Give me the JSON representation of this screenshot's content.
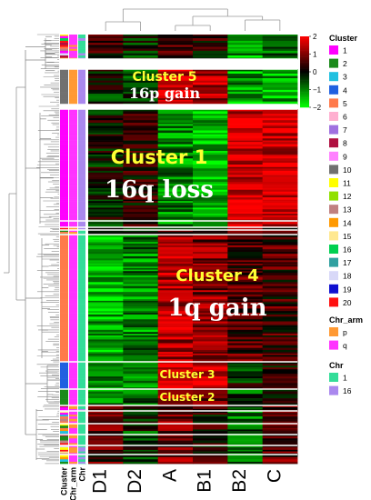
{
  "chart_data": {
    "type": "heatmap",
    "columns": [
      "D1",
      "D2",
      "A",
      "B1",
      "B2",
      "C"
    ],
    "annotation_columns": [
      "Cluster",
      "Chr_arm",
      "Chr"
    ],
    "color_scale": {
      "min": -2,
      "max": 2,
      "ticks": [
        2,
        1,
        0,
        -1,
        -2
      ],
      "low_color": "#00ff00",
      "mid_color": "#000000",
      "high_color": "#ff0000"
    },
    "clusters": [
      {
        "label": "Cluster 5",
        "annotation": "16p gain",
        "chr_arm": "p",
        "chr": "16",
        "mean_values": [
          -0.2,
          -0.3,
          1.6,
          1.3,
          -1.3,
          -1.4
        ]
      },
      {
        "label": "Cluster 1",
        "annotation": "16q loss",
        "chr_arm": "q",
        "chr": "16",
        "mean_values": [
          -0.1,
          0.3,
          -1.1,
          -1.5,
          1.7,
          1.6
        ]
      },
      {
        "label": "Cluster 4",
        "annotation": "1q gain",
        "chr_arm": "q",
        "chr": "1",
        "mean_values": [
          -1.3,
          -1.0,
          1.4,
          1.0,
          0.6,
          0.5
        ]
      },
      {
        "label": "Cluster 3",
        "annotation": "",
        "chr_arm": "q",
        "chr": "1",
        "mean_values": [
          -1.2,
          -1.1,
          1.8,
          1.7,
          -0.2,
          0.1
        ]
      },
      {
        "label": "Cluster 2",
        "annotation": "",
        "chr_arm": "q",
        "chr": "1",
        "mean_values": [
          -0.9,
          -0.8,
          1.0,
          0.8,
          -0.5,
          0.2
        ]
      }
    ],
    "legends": {
      "cluster": {
        "title": "Cluster",
        "items": [
          {
            "label": "1",
            "color": "#ff00ff"
          },
          {
            "label": "2",
            "color": "#1a8a1a"
          },
          {
            "label": "3",
            "color": "#20c0e0"
          },
          {
            "label": "4",
            "color": "#2060e0"
          },
          {
            "label": "5",
            "color": "#ff7a4a"
          },
          {
            "label": "6",
            "color": "#ffb0d0"
          },
          {
            "label": "7",
            "color": "#a070e0"
          },
          {
            "label": "8",
            "color": "#b01040"
          },
          {
            "label": "9",
            "color": "#ff80ff"
          },
          {
            "label": "10",
            "color": "#707070"
          },
          {
            "label": "11",
            "color": "#ffff00"
          },
          {
            "label": "12",
            "color": "#90e000"
          },
          {
            "label": "13",
            "color": "#c08080"
          },
          {
            "label": "14",
            "color": "#ff9900"
          },
          {
            "label": "15",
            "color": "#ffe890"
          },
          {
            "label": "16",
            "color": "#00d050"
          },
          {
            "label": "17",
            "color": "#30a0a0"
          },
          {
            "label": "18",
            "color": "#d8d8f8"
          },
          {
            "label": "19",
            "color": "#1010d0"
          },
          {
            "label": "20",
            "color": "#ff1010"
          }
        ]
      },
      "chr_arm": {
        "title": "Chr_arm",
        "items": [
          {
            "label": "p",
            "color": "#ff9933"
          },
          {
            "label": "q",
            "color": "#ff33ff"
          }
        ]
      },
      "chr": {
        "title": "Chr",
        "items": [
          {
            "label": "1",
            "color": "#33dd99"
          },
          {
            "label": "16",
            "color": "#aa88ee"
          }
        ]
      }
    }
  }
}
